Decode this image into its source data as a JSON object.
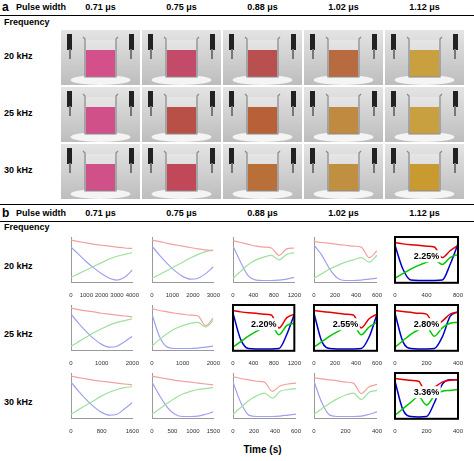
{
  "panel_a": {
    "label": "a",
    "column_header": "Pulse width",
    "row_header": "Frequency",
    "columns": [
      "0.71 μs",
      "0.75 μs",
      "0.88 μs",
      "1.02 μs",
      "1.12 μs"
    ],
    "rows": [
      "20 kHz",
      "25 kHz",
      "30 kHz"
    ],
    "colors": [
      [
        "#d4508a",
        "#c44a6a",
        "#b85050",
        "#b86a40",
        "#c8a040"
      ],
      [
        "#d0508a",
        "#b85048",
        "#b86038",
        "#c08a40",
        "#c8a040"
      ],
      [
        "#d05088",
        "#c04858",
        "#b87038",
        "#c09040",
        "#c89a30"
      ]
    ]
  },
  "panel_b": {
    "label": "b",
    "column_header": "Pulse width",
    "row_header": "Frequency",
    "columns": [
      "0.71 μs",
      "0.75 μs",
      "0.88 μs",
      "1.02 μs",
      "1.12 μs"
    ],
    "rows": [
      "20 kHz",
      "25 kHz",
      "30 kHz"
    ],
    "x_label": "Time (s)"
  },
  "chart_data": [
    {
      "type": "line",
      "grid": false,
      "tick_labels": "x",
      "xlim": [
        0,
        4000
      ],
      "xticks": [
        0,
        1000,
        2000,
        3000,
        4000
      ],
      "ylim": [
        0,
        1
      ],
      "x": [
        0,
        500,
        1000,
        1500,
        2000,
        2500,
        3000,
        3500,
        4000
      ],
      "series": [
        {
          "color": "#f4a0a0",
          "values": [
            0.93,
            0.9,
            0.87,
            0.84,
            0.82,
            0.8,
            0.78,
            0.76,
            0.75
          ]
        },
        {
          "color": "#9fe09f",
          "values": [
            0.12,
            0.2,
            0.28,
            0.36,
            0.44,
            0.52,
            0.58,
            0.62,
            0.66
          ]
        },
        {
          "color": "#a0a0f0",
          "values": [
            0.78,
            0.62,
            0.46,
            0.32,
            0.2,
            0.1,
            0.06,
            0.12,
            0.28
          ]
        }
      ]
    },
    {
      "type": "line",
      "grid": false,
      "tick_labels": "x",
      "xlim": [
        0,
        3000
      ],
      "xticks": [
        0,
        1000,
        2000,
        3000
      ],
      "ylim": [
        0,
        1
      ],
      "x": [
        0,
        375,
        750,
        1125,
        1500,
        1875,
        2250,
        2625,
        3000
      ],
      "series": [
        {
          "color": "#f4a0a0",
          "values": [
            0.93,
            0.9,
            0.86,
            0.83,
            0.8,
            0.77,
            0.74,
            0.72,
            0.7
          ]
        },
        {
          "color": "#9fe09f",
          "values": [
            0.1,
            0.18,
            0.27,
            0.36,
            0.45,
            0.54,
            0.62,
            0.68,
            0.72
          ]
        },
        {
          "color": "#a0a0f0",
          "values": [
            0.8,
            0.6,
            0.42,
            0.26,
            0.14,
            0.08,
            0.1,
            0.2,
            0.35
          ]
        }
      ]
    },
    {
      "type": "line",
      "grid": false,
      "tick_labels": "x",
      "xlim": [
        0,
        1200
      ],
      "xticks": [
        0,
        400,
        800,
        1200
      ],
      "ylim": [
        0,
        1
      ],
      "x": [
        0,
        150,
        300,
        450,
        600,
        750,
        900,
        1050,
        1200
      ],
      "series": [
        {
          "color": "#f4a0a0",
          "values": [
            0.92,
            0.88,
            0.84,
            0.8,
            0.78,
            0.76,
            0.6,
            0.74,
            0.76
          ]
        },
        {
          "color": "#9fe09f",
          "values": [
            0.1,
            0.25,
            0.4,
            0.5,
            0.56,
            0.6,
            0.5,
            0.62,
            0.66
          ]
        },
        {
          "color": "#a0a0f0",
          "values": [
            0.8,
            0.45,
            0.15,
            0.06,
            0.05,
            0.05,
            0.06,
            0.08,
            0.12
          ]
        }
      ]
    },
    {
      "type": "line",
      "grid": false,
      "tick_labels": "x",
      "xlim": [
        0,
        600
      ],
      "xticks": [
        0,
        200,
        400,
        600
      ],
      "ylim": [
        0,
        1
      ],
      "x": [
        0,
        75,
        150,
        225,
        300,
        375,
        450,
        525,
        600
      ],
      "series": [
        {
          "color": "#f4a0a0",
          "values": [
            0.9,
            0.88,
            0.86,
            0.84,
            0.82,
            0.8,
            0.78,
            0.55,
            0.7
          ]
        },
        {
          "color": "#9fe09f",
          "values": [
            0.1,
            0.2,
            0.3,
            0.38,
            0.45,
            0.5,
            0.55,
            0.45,
            0.6
          ]
        },
        {
          "color": "#a0a0f0",
          "values": [
            0.82,
            0.6,
            0.3,
            0.1,
            0.05,
            0.05,
            0.06,
            0.08,
            0.1
          ]
        }
      ]
    },
    {
      "type": "line",
      "grid": false,
      "tick_labels": "x",
      "xlim": [
        0,
        800
      ],
      "xticks": [
        0,
        400,
        800
      ],
      "ylim": [
        0,
        1
      ],
      "annotation": "2.25%",
      "x": [
        0,
        100,
        200,
        300,
        400,
        500,
        600,
        700,
        800
      ],
      "series": [
        {
          "color": "#e60000",
          "values": [
            0.88,
            0.85,
            0.83,
            0.82,
            0.8,
            0.78,
            0.55,
            0.7,
            0.82
          ]
        },
        {
          "color": "#00c800",
          "values": [
            0.1,
            0.2,
            0.3,
            0.38,
            0.45,
            0.5,
            0.4,
            0.55,
            0.62
          ]
        },
        {
          "color": "#0000c8",
          "values": [
            0.82,
            0.3,
            0.06,
            0.05,
            0.05,
            0.05,
            0.06,
            0.4,
            0.85
          ]
        }
      ]
    },
    {
      "type": "line",
      "grid": false,
      "tick_labels": "x",
      "xlim": [
        0,
        2000
      ],
      "xticks": [
        0,
        1000,
        2000
      ],
      "ylim": [
        0,
        1
      ],
      "x": [
        0,
        250,
        500,
        750,
        1000,
        1250,
        1500,
        1750,
        2000
      ],
      "series": [
        {
          "color": "#f4a0a0",
          "values": [
            0.93,
            0.9,
            0.87,
            0.85,
            0.82,
            0.8,
            0.78,
            0.76,
            0.74
          ]
        },
        {
          "color": "#9fe09f",
          "values": [
            0.1,
            0.2,
            0.3,
            0.4,
            0.48,
            0.56,
            0.62,
            0.66,
            0.7
          ]
        },
        {
          "color": "#a0a0f0",
          "values": [
            0.8,
            0.6,
            0.42,
            0.26,
            0.14,
            0.08,
            0.1,
            0.2,
            0.32
          ]
        }
      ]
    },
    {
      "type": "line",
      "grid": false,
      "tick_labels": "x",
      "xlim": [
        0,
        2000
      ],
      "xticks": [
        0,
        1000,
        2000
      ],
      "ylim": [
        0,
        1
      ],
      "x": [
        0,
        250,
        500,
        750,
        1000,
        1250,
        1500,
        1750,
        2000
      ],
      "series": [
        {
          "color": "#f4a0a0",
          "values": [
            0.92,
            0.88,
            0.85,
            0.82,
            0.8,
            0.78,
            0.76,
            0.55,
            0.72
          ]
        },
        {
          "color": "#9fe09f",
          "values": [
            0.1,
            0.25,
            0.38,
            0.48,
            0.55,
            0.6,
            0.62,
            0.52,
            0.66
          ]
        },
        {
          "color": "#a0a0f0",
          "values": [
            0.8,
            0.3,
            0.08,
            0.05,
            0.05,
            0.05,
            0.06,
            0.08,
            0.1
          ]
        }
      ]
    },
    {
      "type": "line",
      "grid": false,
      "tick_labels": "x",
      "xlim": [
        0,
        1200
      ],
      "xticks": [
        0,
        400,
        800,
        1200
      ],
      "ylim": [
        0,
        1
      ],
      "annotation": "2.20%",
      "x": [
        0,
        150,
        300,
        450,
        600,
        750,
        900,
        1050,
        1200
      ],
      "series": [
        {
          "color": "#e60000",
          "values": [
            0.88,
            0.85,
            0.83,
            0.82,
            0.8,
            0.78,
            0.5,
            0.72,
            0.8
          ]
        },
        {
          "color": "#00c800",
          "values": [
            0.08,
            0.2,
            0.32,
            0.42,
            0.5,
            0.55,
            0.35,
            0.55,
            0.6
          ]
        },
        {
          "color": "#0000c8",
          "values": [
            0.82,
            0.25,
            0.05,
            0.04,
            0.04,
            0.04,
            0.05,
            0.35,
            0.8
          ]
        }
      ]
    },
    {
      "type": "line",
      "grid": false,
      "tick_labels": "x",
      "xlim": [
        0,
        600
      ],
      "xticks": [
        0,
        200,
        400,
        600
      ],
      "ylim": [
        0,
        1
      ],
      "annotation": "2.55%",
      "x": [
        0,
        75,
        150,
        225,
        300,
        375,
        450,
        525,
        600
      ],
      "series": [
        {
          "color": "#e60000",
          "values": [
            0.88,
            0.86,
            0.84,
            0.82,
            0.8,
            0.78,
            0.5,
            0.7,
            0.8
          ]
        },
        {
          "color": "#00c800",
          "values": [
            0.08,
            0.2,
            0.32,
            0.42,
            0.5,
            0.55,
            0.35,
            0.52,
            0.62
          ]
        },
        {
          "color": "#0000c8",
          "values": [
            0.82,
            0.2,
            0.05,
            0.04,
            0.04,
            0.04,
            0.05,
            0.3,
            0.8
          ]
        }
      ]
    },
    {
      "type": "line",
      "grid": false,
      "tick_labels": "x",
      "xlim": [
        0,
        400
      ],
      "xticks": [
        0,
        200,
        400
      ],
      "ylim": [
        0,
        1
      ],
      "annotation": "2.80%",
      "x": [
        0,
        50,
        100,
        150,
        200,
        250,
        300,
        350,
        400
      ],
      "series": [
        {
          "color": "#e60000",
          "values": [
            0.88,
            0.86,
            0.84,
            0.82,
            0.8,
            0.55,
            0.65,
            0.8,
            0.85
          ]
        },
        {
          "color": "#00c800",
          "values": [
            0.08,
            0.22,
            0.36,
            0.46,
            0.52,
            0.32,
            0.5,
            0.6,
            0.62
          ]
        },
        {
          "color": "#0000c8",
          "values": [
            0.82,
            0.2,
            0.05,
            0.04,
            0.04,
            0.05,
            0.3,
            0.75,
            0.85
          ]
        }
      ]
    },
    {
      "type": "line",
      "grid": false,
      "tick_labels": "x",
      "xlim": [
        0,
        1600
      ],
      "xticks": [
        0,
        800,
        1600
      ],
      "ylim": [
        0,
        1
      ],
      "x": [
        0,
        200,
        400,
        600,
        800,
        1000,
        1200,
        1400,
        1600
      ],
      "series": [
        {
          "color": "#f4a0a0",
          "values": [
            0.93,
            0.9,
            0.87,
            0.84,
            0.82,
            0.8,
            0.78,
            0.76,
            0.74
          ]
        },
        {
          "color": "#9fe09f",
          "values": [
            0.1,
            0.2,
            0.3,
            0.4,
            0.5,
            0.58,
            0.64,
            0.68,
            0.7
          ]
        },
        {
          "color": "#a0a0f0",
          "values": [
            0.8,
            0.6,
            0.42,
            0.26,
            0.14,
            0.08,
            0.1,
            0.22,
            0.35
          ]
        }
      ]
    },
    {
      "type": "line",
      "grid": false,
      "tick_labels": "x",
      "xlim": [
        0,
        1500
      ],
      "xticks": [
        0,
        500,
        1000,
        1500
      ],
      "ylim": [
        0,
        1
      ],
      "x": [
        0,
        190,
        375,
        560,
        750,
        940,
        1125,
        1310,
        1500
      ],
      "series": [
        {
          "color": "#f4a0a0",
          "values": [
            0.93,
            0.9,
            0.87,
            0.84,
            0.82,
            0.8,
            0.78,
            0.76,
            0.74
          ]
        },
        {
          "color": "#9fe09f",
          "values": [
            0.1,
            0.22,
            0.34,
            0.45,
            0.54,
            0.6,
            0.64,
            0.66,
            0.68
          ]
        },
        {
          "color": "#a0a0f0",
          "values": [
            0.8,
            0.5,
            0.25,
            0.1,
            0.05,
            0.05,
            0.06,
            0.1,
            0.15
          ]
        }
      ]
    },
    {
      "type": "line",
      "grid": false,
      "tick_labels": "x",
      "xlim": [
        0,
        600
      ],
      "xticks": [
        0,
        200,
        400,
        600
      ],
      "ylim": [
        0,
        1
      ],
      "x": [
        0,
        75,
        150,
        225,
        300,
        375,
        450,
        525,
        600
      ],
      "series": [
        {
          "color": "#f4a0a0",
          "values": [
            0.92,
            0.88,
            0.85,
            0.82,
            0.8,
            0.6,
            0.72,
            0.76,
            0.78
          ]
        },
        {
          "color": "#9fe09f",
          "values": [
            0.1,
            0.25,
            0.4,
            0.5,
            0.56,
            0.45,
            0.6,
            0.64,
            0.66
          ]
        },
        {
          "color": "#a0a0f0",
          "values": [
            0.8,
            0.35,
            0.08,
            0.05,
            0.05,
            0.05,
            0.06,
            0.08,
            0.1
          ]
        }
      ]
    },
    {
      "type": "line",
      "grid": false,
      "tick_labels": "x",
      "xlim": [
        0,
        400
      ],
      "xticks": [
        0,
        200,
        400
      ],
      "ylim": [
        0,
        1
      ],
      "x": [
        0,
        50,
        100,
        150,
        200,
        250,
        300,
        350,
        400
      ],
      "series": [
        {
          "color": "#f4a0a0",
          "values": [
            0.9,
            0.87,
            0.85,
            0.83,
            0.8,
            0.78,
            0.55,
            0.7,
            0.75
          ]
        },
        {
          "color": "#9fe09f",
          "values": [
            0.1,
            0.22,
            0.34,
            0.44,
            0.52,
            0.56,
            0.42,
            0.58,
            0.62
          ]
        },
        {
          "color": "#a0a0f0",
          "values": [
            0.82,
            0.35,
            0.08,
            0.05,
            0.05,
            0.05,
            0.06,
            0.1,
            0.15
          ]
        }
      ]
    },
    {
      "type": "line",
      "grid": false,
      "tick_labels": "x",
      "xlim": [
        0,
        400
      ],
      "xticks": [
        0,
        200,
        400
      ],
      "ylim": [
        0,
        1
      ],
      "annotation": "3.36%",
      "x": [
        0,
        50,
        100,
        150,
        200,
        250,
        300,
        350,
        400
      ],
      "series": [
        {
          "color": "#e60000",
          "values": [
            0.88,
            0.86,
            0.84,
            0.82,
            0.55,
            0.68,
            0.8,
            0.84,
            0.86
          ]
        },
        {
          "color": "#00c800",
          "values": [
            0.08,
            0.22,
            0.36,
            0.48,
            0.3,
            0.5,
            0.6,
            0.62,
            0.64
          ]
        },
        {
          "color": "#0000c8",
          "values": [
            0.82,
            0.2,
            0.05,
            0.04,
            0.05,
            0.35,
            0.75,
            0.85,
            0.85
          ]
        }
      ]
    }
  ]
}
